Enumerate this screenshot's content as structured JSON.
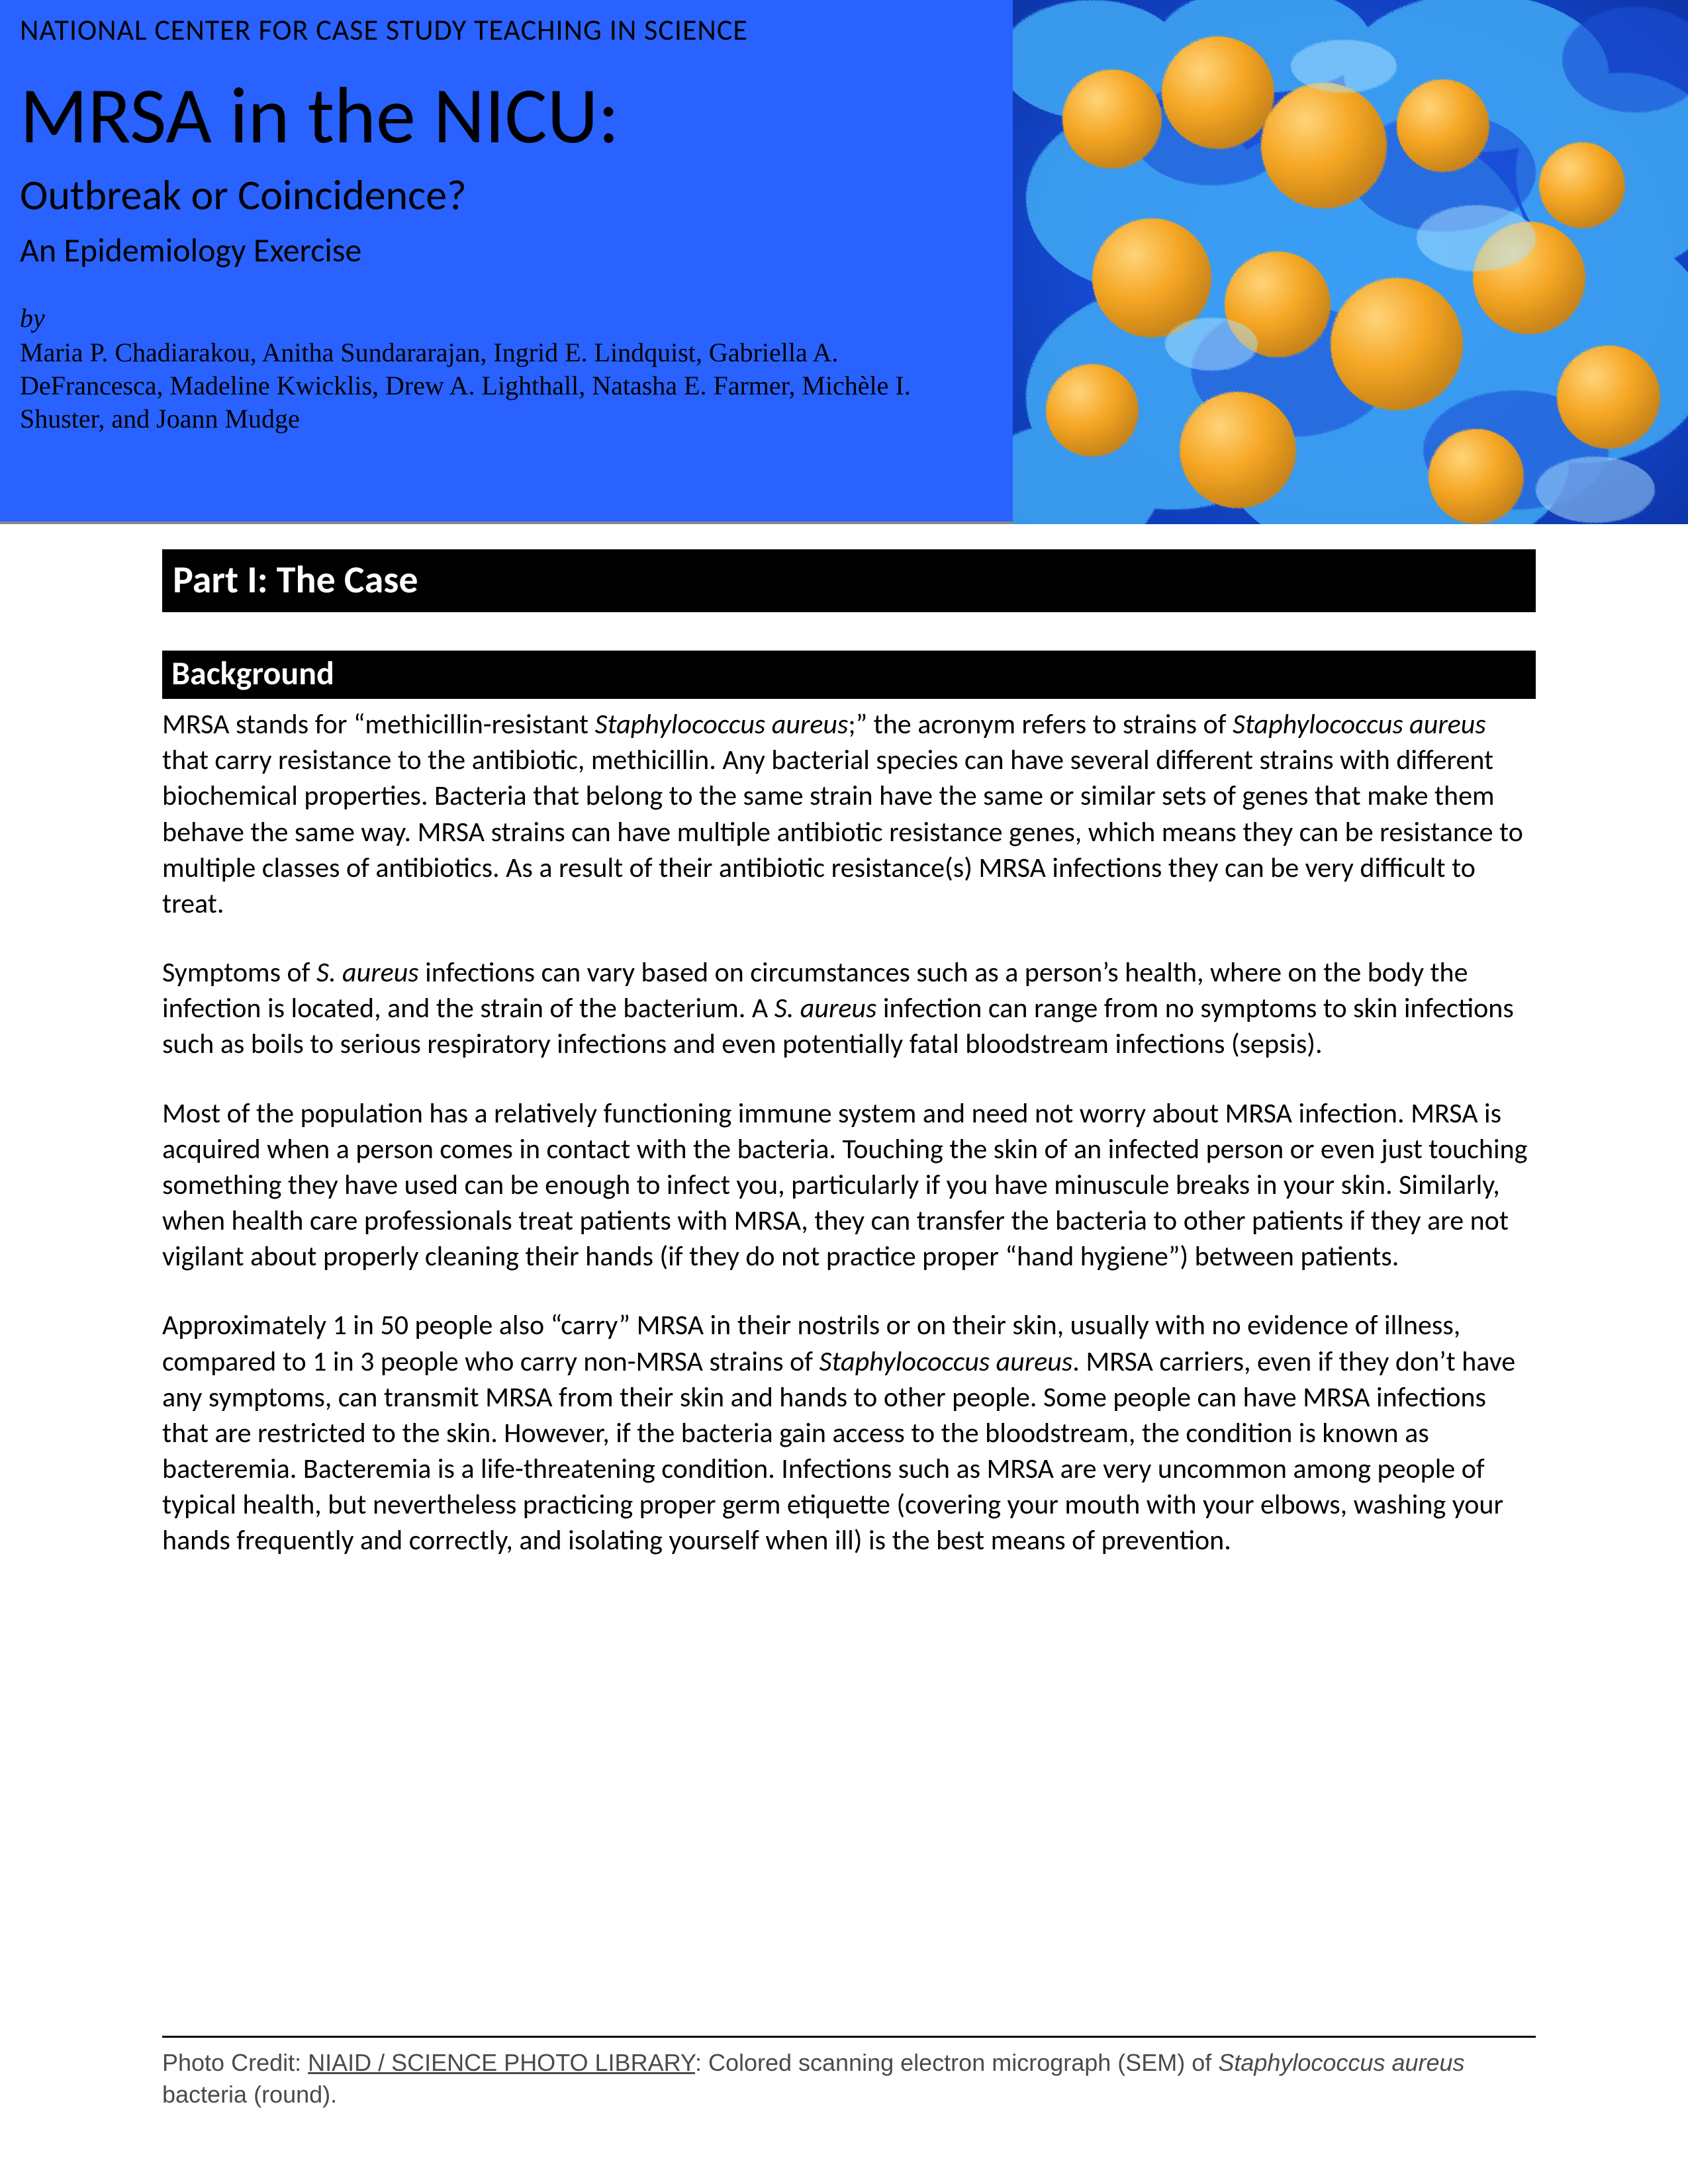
{
  "colors": {
    "header_bg": "#2962ff",
    "part_bg": "#000000",
    "part_fg": "#ffffff",
    "page_bg": "#ffffff",
    "text": "#000000",
    "footer_text": "#4a4a4a",
    "rule": "#000000"
  },
  "header": {
    "org": "NATIONAL CENTER FOR CASE STUDY TEACHING IN SCIENCE",
    "title": "MRSA in the NICU:",
    "subtitle": "Outbreak or Coincidence?",
    "subtitle2": "An Epidemiology Exercise",
    "by_label": "by",
    "authors": "Maria P. Chadiarakou, Anitha Sundararajan, Ingrid E. Lindquist, Gabriella A. DeFrancesca, Madeline Kwicklis, Drew A. Lighthall, Natasha E. Farmer, Michèle I. Shuster, and Joann Mudge"
  },
  "micrograph": {
    "type": "decorative-image",
    "description": "Colored scanning electron micrograph of Staphylococcus aureus",
    "orb_color": "#f5a623",
    "web_color_light": "#3fa9f5",
    "web_color_dark": "#1b4fd6",
    "background": "#0b2f9e"
  },
  "content": {
    "part_title": "Part I: The Case",
    "sections": [
      {
        "heading": "Background",
        "paragraphs_html": [
          "MRSA stands for “methicillin-resistant <em>Staphylococcus aureus</em>;” the acronym refers to strains of <em>Staphylococcus aureus</em> that carry resistance to the antibiotic, methicillin.  Any bacterial species can have several different strains with different biochemical properties.  Bacteria that belong to the same strain have the same or similar sets of genes that make them behave the same way.  MRSA strains can have multiple antibiotic resistance genes, which means they can be resistance to multiple classes of antibiotics.  As a result of their antibiotic resistance(s) MRSA infections they can be very difficult to treat.",
          "Symptoms of <em>S. aureus</em> infections can vary based on circumstances such as a person’s health, where on the body the infection is located, and the strain of the bacterium. A <em>S. aureus</em> infection can range from no symptoms to skin infections such as boils to serious respiratory infections and even potentially fatal bloodstream infections (sepsis).",
          "Most of the population has a relatively functioning immune system and need not worry about MRSA infection. MRSA is acquired when a person comes in contact with the bacteria. Touching the skin of an infected person or even just touching something they have used can be enough to infect you, particularly if you have minuscule breaks in your skin. Similarly, when health care professionals treat patients with MRSA, they can transfer the bacteria to other patients if they are not vigilant about properly cleaning their hands (if they do not practice proper “hand hygiene”) between patients.",
          "Approximately 1 in 50 people also “carry” MRSA in their nostrils or on their skin, usually with no evidence of illness, compared to 1 in 3 people who carry non-MRSA strains of <em>Staphylococcus aureus</em>. MRSA carriers, even if they don’t have any symptoms, can transmit MRSA from their skin and hands to other people. Some people can have MRSA infections that are restricted to the skin. However, if the bacteria gain access to the bloodstream, the condition is known as bacteremia. Bacteremia is a life-threatening condition. Infections such as MRSA are very uncommon among people of typical health, but nevertheless practicing proper germ etiquette (covering your mouth with your elbows, washing your hands frequently and correctly, and isolating yourself when ill) is the best means of prevention."
        ]
      }
    ]
  },
  "footer": {
    "credit_prefix": "Photo Credit: ",
    "credit_link": "NIAID / SCIENCE PHOTO LIBRARY",
    "caption_html": ":  Colored scanning electron micrograph (SEM) of <em>Staphylococcus aureus</em> bacteria (round)."
  }
}
